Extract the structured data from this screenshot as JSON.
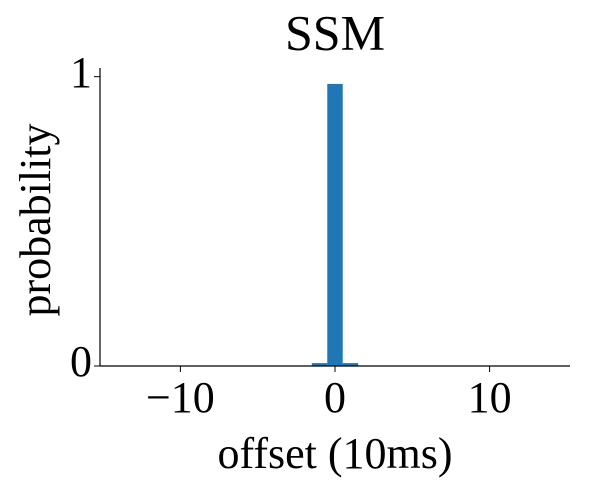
{
  "chart_data": {
    "type": "bar",
    "title": "SSM",
    "xlabel": "offset (10ms)",
    "ylabel": "probability",
    "x": [
      -1,
      0,
      1
    ],
    "values": [
      0.01,
      0.975,
      0.01
    ],
    "color": "#1f77b4",
    "xlim": [
      -15.2,
      15.2
    ],
    "ylim": [
      0,
      1.03
    ],
    "xticks": [
      {
        "value": -10,
        "label": "−10"
      },
      0,
      10
    ],
    "yticks": [
      0,
      1
    ]
  }
}
